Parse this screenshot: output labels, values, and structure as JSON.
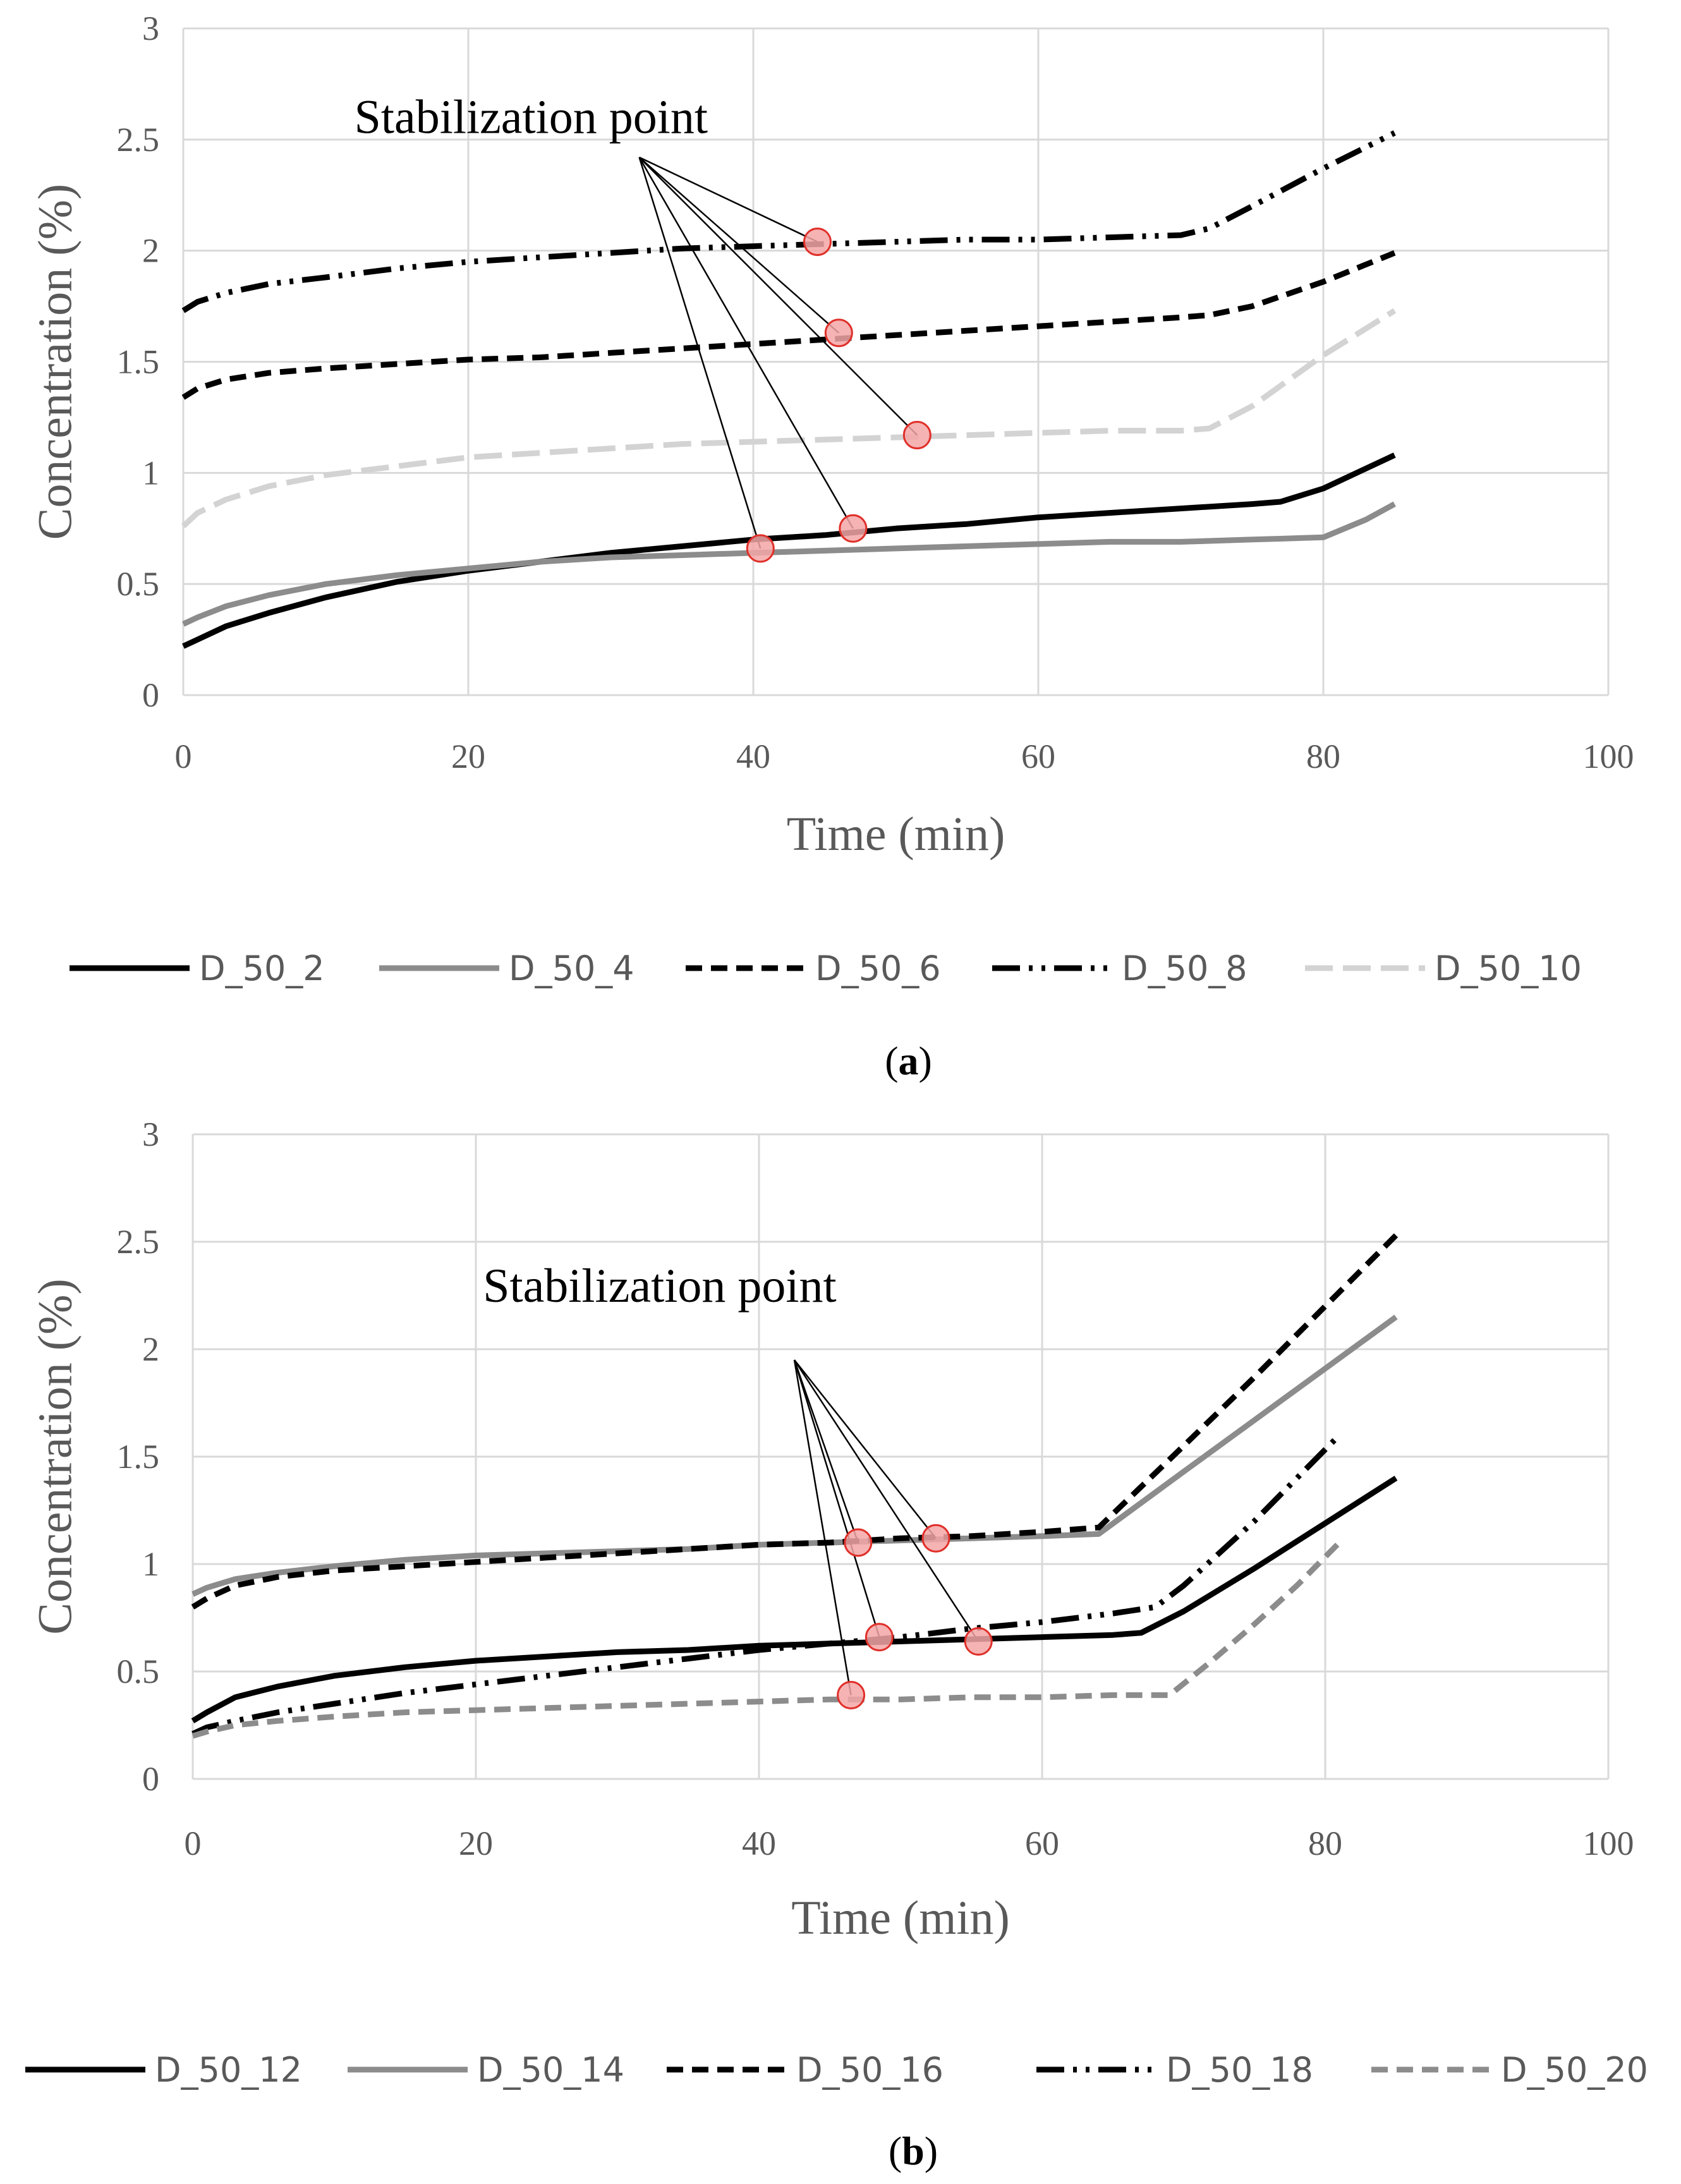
{
  "chart_data": [
    {
      "type": "line",
      "panel_label": "(a)",
      "panel_letter": "a",
      "xlabel": "Time (min)",
      "ylabel": "Concentration (%)",
      "xlim": [
        0,
        100
      ],
      "ylim": [
        0,
        3
      ],
      "xticks": [
        0,
        20,
        40,
        60,
        80,
        100
      ],
      "yticks": [
        0,
        0.5,
        1,
        1.5,
        2,
        2.5,
        3
      ],
      "xtick_labels": [
        "0",
        "20",
        "40",
        "60",
        "80",
        "100"
      ],
      "ytick_labels": [
        "0",
        "0.5",
        "1",
        "1.5",
        "2",
        "2.5",
        "3"
      ],
      "grid": true,
      "legend_position": "bottom",
      "annotation": {
        "text": "Stabilization point",
        "anchor": [
          32,
          2.42
        ],
        "text_position": [
          12,
          2.53
        ],
        "points": [
          [
            44.5,
            2.04
          ],
          [
            46.0,
            1.63
          ],
          [
            51.5,
            1.17
          ],
          [
            47.0,
            0.75
          ],
          [
            40.5,
            0.66
          ]
        ],
        "marker_color": "#f4a6a6",
        "marker_edge": "#e0302a"
      },
      "series": [
        {
          "name": "D_50_2",
          "color": "#000000",
          "style": "solid",
          "x": [
            0,
            1,
            3,
            6,
            10,
            15,
            20,
            25,
            30,
            35,
            40,
            45,
            50,
            55,
            60,
            65,
            70,
            75,
            77,
            80,
            83,
            85
          ],
          "y": [
            0.22,
            0.25,
            0.31,
            0.37,
            0.44,
            0.51,
            0.56,
            0.6,
            0.64,
            0.67,
            0.7,
            0.72,
            0.75,
            0.77,
            0.8,
            0.82,
            0.84,
            0.86,
            0.87,
            0.93,
            1.02,
            1.08
          ]
        },
        {
          "name": "D_50_4",
          "color": "#8c8c8c",
          "style": "solid",
          "x": [
            0,
            1,
            3,
            6,
            10,
            15,
            20,
            25,
            30,
            35,
            40,
            45,
            50,
            55,
            60,
            65,
            70,
            75,
            80,
            83,
            85
          ],
          "y": [
            0.32,
            0.35,
            0.4,
            0.45,
            0.5,
            0.54,
            0.57,
            0.6,
            0.62,
            0.63,
            0.64,
            0.65,
            0.66,
            0.67,
            0.68,
            0.69,
            0.69,
            0.7,
            0.71,
            0.79,
            0.86
          ]
        },
        {
          "name": "D_50_6",
          "color": "#000000",
          "style": "dash",
          "x": [
            0,
            1,
            3,
            6,
            10,
            15,
            20,
            25,
            30,
            35,
            40,
            45,
            50,
            55,
            60,
            65,
            70,
            72,
            75,
            80,
            85
          ],
          "y": [
            1.34,
            1.38,
            1.42,
            1.45,
            1.47,
            1.49,
            1.51,
            1.52,
            1.54,
            1.56,
            1.58,
            1.6,
            1.62,
            1.64,
            1.66,
            1.68,
            1.7,
            1.71,
            1.75,
            1.86,
            1.99
          ]
        },
        {
          "name": "D_50_8",
          "color": "#000000",
          "style": "dashdotdot",
          "x": [
            0,
            1,
            3,
            6,
            10,
            15,
            20,
            25,
            30,
            35,
            40,
            45,
            50,
            55,
            60,
            65,
            70,
            72,
            75,
            80,
            85
          ],
          "y": [
            1.73,
            1.77,
            1.81,
            1.85,
            1.88,
            1.92,
            1.95,
            1.97,
            1.99,
            2.01,
            2.02,
            2.03,
            2.04,
            2.05,
            2.05,
            2.06,
            2.07,
            2.1,
            2.2,
            2.37,
            2.53
          ]
        },
        {
          "name": "D_50_10",
          "color": "#d3d3d3",
          "style": "longdash",
          "x": [
            0,
            1,
            3,
            6,
            10,
            15,
            20,
            25,
            30,
            35,
            40,
            45,
            50,
            55,
            60,
            65,
            70,
            72,
            75,
            80,
            85
          ],
          "y": [
            0.76,
            0.82,
            0.88,
            0.94,
            0.99,
            1.03,
            1.07,
            1.09,
            1.11,
            1.13,
            1.14,
            1.15,
            1.16,
            1.17,
            1.18,
            1.19,
            1.19,
            1.2,
            1.3,
            1.53,
            1.73
          ]
        }
      ]
    },
    {
      "type": "line",
      "panel_label": "(b)",
      "panel_letter": "b",
      "xlabel": "Time (min)",
      "ylabel": "Concentration (%)",
      "xlim": [
        0,
        100
      ],
      "ylim": [
        0,
        3
      ],
      "xticks": [
        0,
        20,
        40,
        60,
        80,
        100
      ],
      "yticks": [
        0,
        0.5,
        1,
        1.5,
        2,
        2.5,
        3
      ],
      "xtick_labels": [
        "0",
        "20",
        "40",
        "60",
        "80",
        "100"
      ],
      "ytick_labels": [
        "0",
        "0.5",
        "1",
        "1.5",
        "2",
        "2.5",
        "3"
      ],
      "grid": true,
      "legend_position": "bottom",
      "annotation": {
        "text": "Stabilization point",
        "anchor": [
          42.5,
          1.95
        ],
        "text_position": [
          20.5,
          2.22
        ],
        "points": [
          [
            47.0,
            1.1
          ],
          [
            52.5,
            1.12
          ],
          [
            48.5,
            0.66
          ],
          [
            55.5,
            0.64
          ],
          [
            46.5,
            0.39
          ]
        ],
        "marker_color": "#f4a6a6",
        "marker_edge": "#e0302a"
      },
      "series": [
        {
          "name": "D_50_12",
          "color": "#000000",
          "style": "solid",
          "x": [
            0,
            1,
            3,
            6,
            10,
            15,
            20,
            25,
            30,
            35,
            40,
            45,
            50,
            55,
            60,
            65,
            67,
            70,
            75,
            80,
            85
          ],
          "y": [
            0.27,
            0.31,
            0.38,
            0.43,
            0.48,
            0.52,
            0.55,
            0.57,
            0.59,
            0.6,
            0.62,
            0.63,
            0.64,
            0.65,
            0.66,
            0.67,
            0.68,
            0.78,
            0.98,
            1.19,
            1.4
          ]
        },
        {
          "name": "D_50_14",
          "color": "#8c8c8c",
          "style": "solid",
          "x": [
            0,
            1,
            3,
            6,
            10,
            15,
            20,
            25,
            30,
            35,
            40,
            45,
            50,
            55,
            60,
            64,
            70,
            75,
            80,
            85
          ],
          "y": [
            0.86,
            0.89,
            0.93,
            0.96,
            0.99,
            1.02,
            1.04,
            1.05,
            1.06,
            1.07,
            1.09,
            1.1,
            1.11,
            1.12,
            1.13,
            1.14,
            1.43,
            1.67,
            1.91,
            2.15
          ]
        },
        {
          "name": "D_50_16",
          "color": "#000000",
          "style": "dash",
          "x": [
            0,
            1,
            3,
            6,
            10,
            15,
            20,
            25,
            30,
            35,
            40,
            45,
            50,
            55,
            60,
            64,
            70,
            75,
            80,
            85
          ],
          "y": [
            0.8,
            0.84,
            0.9,
            0.94,
            0.97,
            0.99,
            1.01,
            1.03,
            1.05,
            1.07,
            1.09,
            1.1,
            1.12,
            1.13,
            1.15,
            1.17,
            1.55,
            1.87,
            2.2,
            2.53
          ]
        },
        {
          "name": "D_50_18",
          "color": "#000000",
          "style": "dashdotdot",
          "x": [
            0,
            1,
            3,
            6,
            10,
            15,
            20,
            25,
            30,
            35,
            40,
            45,
            50,
            55,
            60,
            65,
            68,
            70,
            75,
            81
          ],
          "y": [
            0.21,
            0.24,
            0.27,
            0.31,
            0.35,
            0.4,
            0.44,
            0.48,
            0.52,
            0.56,
            0.6,
            0.63,
            0.66,
            0.7,
            0.73,
            0.77,
            0.8,
            0.9,
            1.2,
            1.6
          ]
        },
        {
          "name": "D_50_20",
          "color": "#8c8c8c",
          "style": "dash",
          "x": [
            0,
            1,
            3,
            6,
            10,
            15,
            20,
            25,
            30,
            35,
            40,
            45,
            50,
            55,
            60,
            65,
            69,
            72,
            75,
            78,
            81
          ],
          "y": [
            0.2,
            0.22,
            0.25,
            0.27,
            0.29,
            0.31,
            0.32,
            0.33,
            0.34,
            0.35,
            0.36,
            0.37,
            0.37,
            0.38,
            0.38,
            0.39,
            0.39,
            0.55,
            0.72,
            0.9,
            1.1
          ]
        }
      ]
    }
  ]
}
